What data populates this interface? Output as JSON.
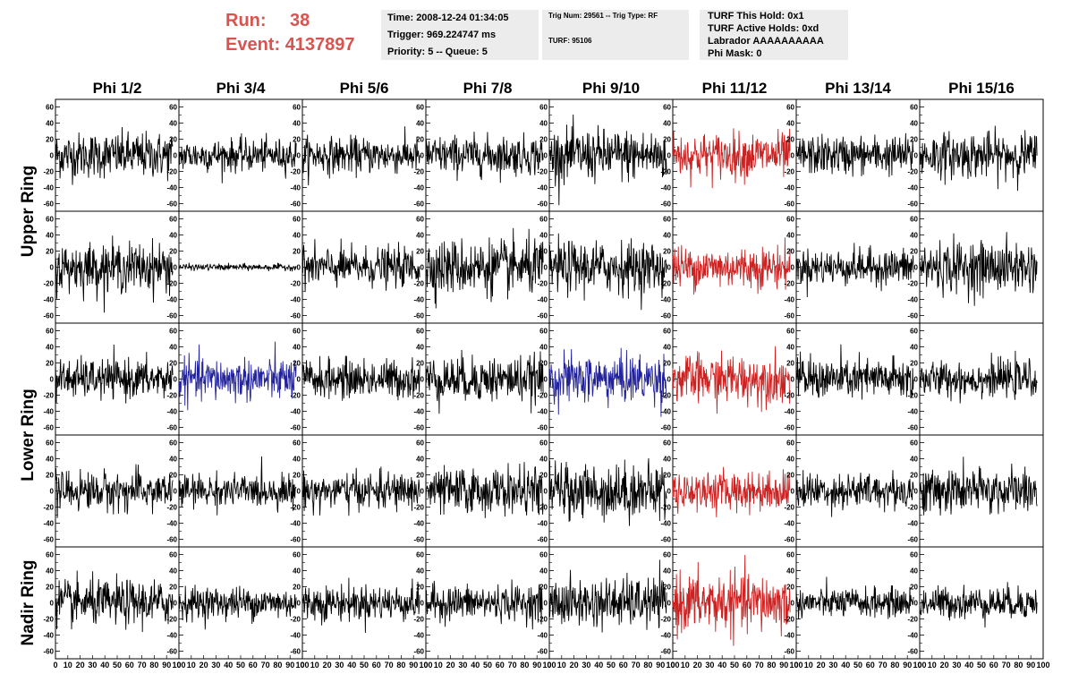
{
  "header": {
    "run_label": "Run:",
    "run_value": "38",
    "event_label": "Event:",
    "event_value": "4137897"
  },
  "info_time": {
    "time": "Time: 2008-12-24 01:34:05",
    "trigger": "Trigger: 969.224747 ms",
    "priority": "Priority: 5 -- Queue: 5"
  },
  "info_trig": {
    "trig": "Trig Num: 29561 -- Trig Type: RF",
    "turf": "TURF: 95106"
  },
  "info_turf": {
    "hold": "TURF This Hold: 0x1",
    "active": "TURF Active Holds: 0xd",
    "labrador": "Labrador AAAAAAAAAA",
    "mask": "Phi Mask: 0"
  },
  "colors": {
    "header_red": "#d9534f",
    "trace_normal": "#000000",
    "trace_red": "#cc2222",
    "trace_blue": "#22229a"
  },
  "chart_data": {
    "type": "line",
    "columns": [
      "Phi 1/2",
      "Phi 3/4",
      "Phi 5/6",
      "Phi 7/8",
      "Phi 9/10",
      "Phi 11/12",
      "Phi 13/14",
      "Phi 15/16"
    ],
    "ring_labels": [
      "Upper Ring",
      "Lower Ring",
      "Nadir Ring"
    ],
    "rows": 5,
    "xlim": [
      0,
      100
    ],
    "ylim": [
      -65,
      65
    ],
    "y_ticks": [
      "60",
      "40",
      "20",
      "0",
      "-20",
      "-40",
      "-60"
    ],
    "x_ticks": [
      "0",
      "10",
      "20",
      "30",
      "40",
      "50",
      "60",
      "70",
      "80",
      "90",
      "100"
    ],
    "highlighted": {
      "red": [
        [
          0,
          5
        ],
        [
          1,
          5
        ],
        [
          2,
          5
        ],
        [
          3,
          5
        ],
        [
          4,
          5
        ]
      ],
      "blue": [
        [
          2,
          1
        ],
        [
          2,
          4
        ]
      ]
    },
    "flat_panel": [
      1,
      1
    ],
    "panel_amplitude_rms": [
      [
        14,
        10,
        11,
        12,
        16,
        14,
        12,
        14
      ],
      [
        15,
        2,
        12,
        17,
        16,
        13,
        11,
        16
      ],
      [
        12,
        13,
        12,
        14,
        15,
        15,
        13,
        11
      ],
      [
        12,
        10,
        11,
        14,
        17,
        12,
        11,
        14
      ],
      [
        14,
        10,
        11,
        11,
        15,
        18,
        9,
        10
      ]
    ],
    "num_samples": 256
  }
}
